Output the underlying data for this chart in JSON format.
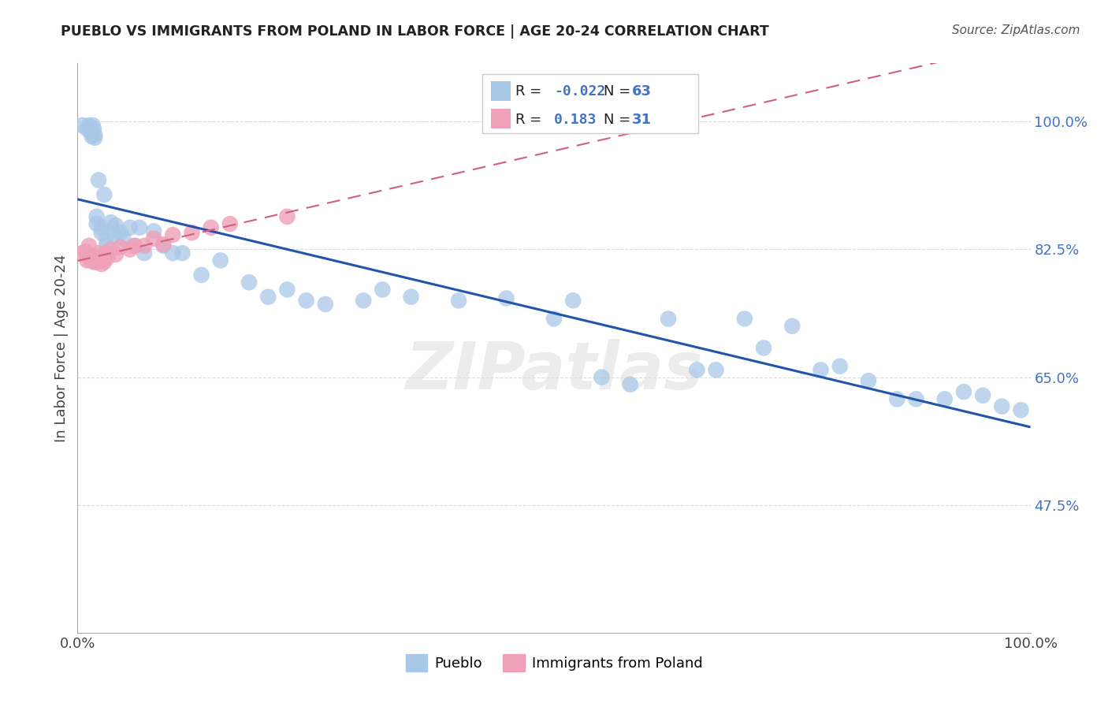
{
  "title": "PUEBLO VS IMMIGRANTS FROM POLAND IN LABOR FORCE | AGE 20-24 CORRELATION CHART",
  "source": "Source: ZipAtlas.com",
  "ylabel": "In Labor Force | Age 20-24",
  "R_pueblo": -0.022,
  "N_pueblo": 63,
  "R_poland": 0.183,
  "N_poland": 31,
  "pueblo_color": "#a8c8e8",
  "poland_color": "#f0a0b8",
  "pueblo_line_color": "#2255aa",
  "poland_line_color": "#d06080",
  "background_color": "#ffffff",
  "grid_color": "#cccccc",
  "xlim": [
    0.0,
    1.0
  ],
  "ylim": [
    0.3,
    1.08
  ],
  "yticks": [
    0.475,
    0.65,
    0.825,
    1.0
  ],
  "ytick_labels": [
    "47.5%",
    "65.0%",
    "82.5%",
    "100.0%"
  ],
  "xticks": [
    0.0,
    1.0
  ],
  "xtick_labels": [
    "0.0%",
    "100.0%"
  ],
  "pueblo_x": [
    0.005,
    0.01,
    0.012,
    0.013,
    0.015,
    0.015,
    0.016,
    0.017,
    0.018,
    0.018,
    0.02,
    0.02,
    0.022,
    0.025,
    0.025,
    0.028,
    0.03,
    0.03,
    0.035,
    0.038,
    0.04,
    0.045,
    0.048,
    0.055,
    0.06,
    0.065,
    0.07,
    0.08,
    0.09,
    0.1,
    0.11,
    0.13,
    0.15,
    0.18,
    0.2,
    0.22,
    0.24,
    0.26,
    0.3,
    0.32,
    0.35,
    0.4,
    0.45,
    0.5,
    0.52,
    0.55,
    0.58,
    0.62,
    0.65,
    0.67,
    0.7,
    0.72,
    0.75,
    0.78,
    0.8,
    0.83,
    0.86,
    0.88,
    0.91,
    0.93,
    0.95,
    0.97,
    0.99
  ],
  "pueblo_y": [
    0.995,
    0.99,
    0.995,
    0.988,
    0.985,
    0.98,
    0.995,
    0.99,
    0.982,
    0.978,
    0.87,
    0.86,
    0.92,
    0.855,
    0.848,
    0.9,
    0.84,
    0.83,
    0.862,
    0.845,
    0.858,
    0.848,
    0.84,
    0.855,
    0.83,
    0.855,
    0.82,
    0.85,
    0.83,
    0.82,
    0.82,
    0.79,
    0.81,
    0.78,
    0.76,
    0.77,
    0.755,
    0.75,
    0.755,
    0.77,
    0.76,
    0.755,
    0.758,
    0.73,
    0.755,
    0.65,
    0.64,
    0.73,
    0.66,
    0.66,
    0.73,
    0.69,
    0.72,
    0.66,
    0.665,
    0.645,
    0.62,
    0.62,
    0.62,
    0.63,
    0.625,
    0.61,
    0.605
  ],
  "poland_x": [
    0.005,
    0.008,
    0.01,
    0.01,
    0.012,
    0.014,
    0.016,
    0.017,
    0.018,
    0.018,
    0.02,
    0.02,
    0.022,
    0.025,
    0.025,
    0.028,
    0.03,
    0.032,
    0.035,
    0.04,
    0.045,
    0.055,
    0.06,
    0.07,
    0.08,
    0.09,
    0.1,
    0.12,
    0.14,
    0.16,
    0.22
  ],
  "poland_y": [
    0.82,
    0.822,
    0.818,
    0.81,
    0.83,
    0.81,
    0.81,
    0.808,
    0.812,
    0.808,
    0.815,
    0.808,
    0.82,
    0.812,
    0.805,
    0.808,
    0.82,
    0.815,
    0.825,
    0.818,
    0.828,
    0.825,
    0.83,
    0.83,
    0.84,
    0.832,
    0.845,
    0.848,
    0.855,
    0.86,
    0.87
  ],
  "watermark": "ZIPatlas"
}
